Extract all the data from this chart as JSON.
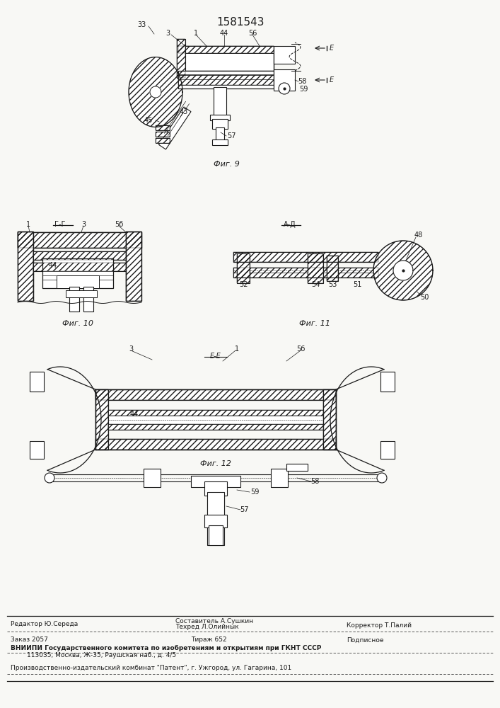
{
  "patent_number": "1581543",
  "bg_color": "#f8f8f5",
  "line_color": "#1a1a1a",
  "fig9_label": "Фиг. 9",
  "fig10_label": "Фиг. 10",
  "fig11_label": "Фиг. 11",
  "fig12_label": "Фиг. 12"
}
